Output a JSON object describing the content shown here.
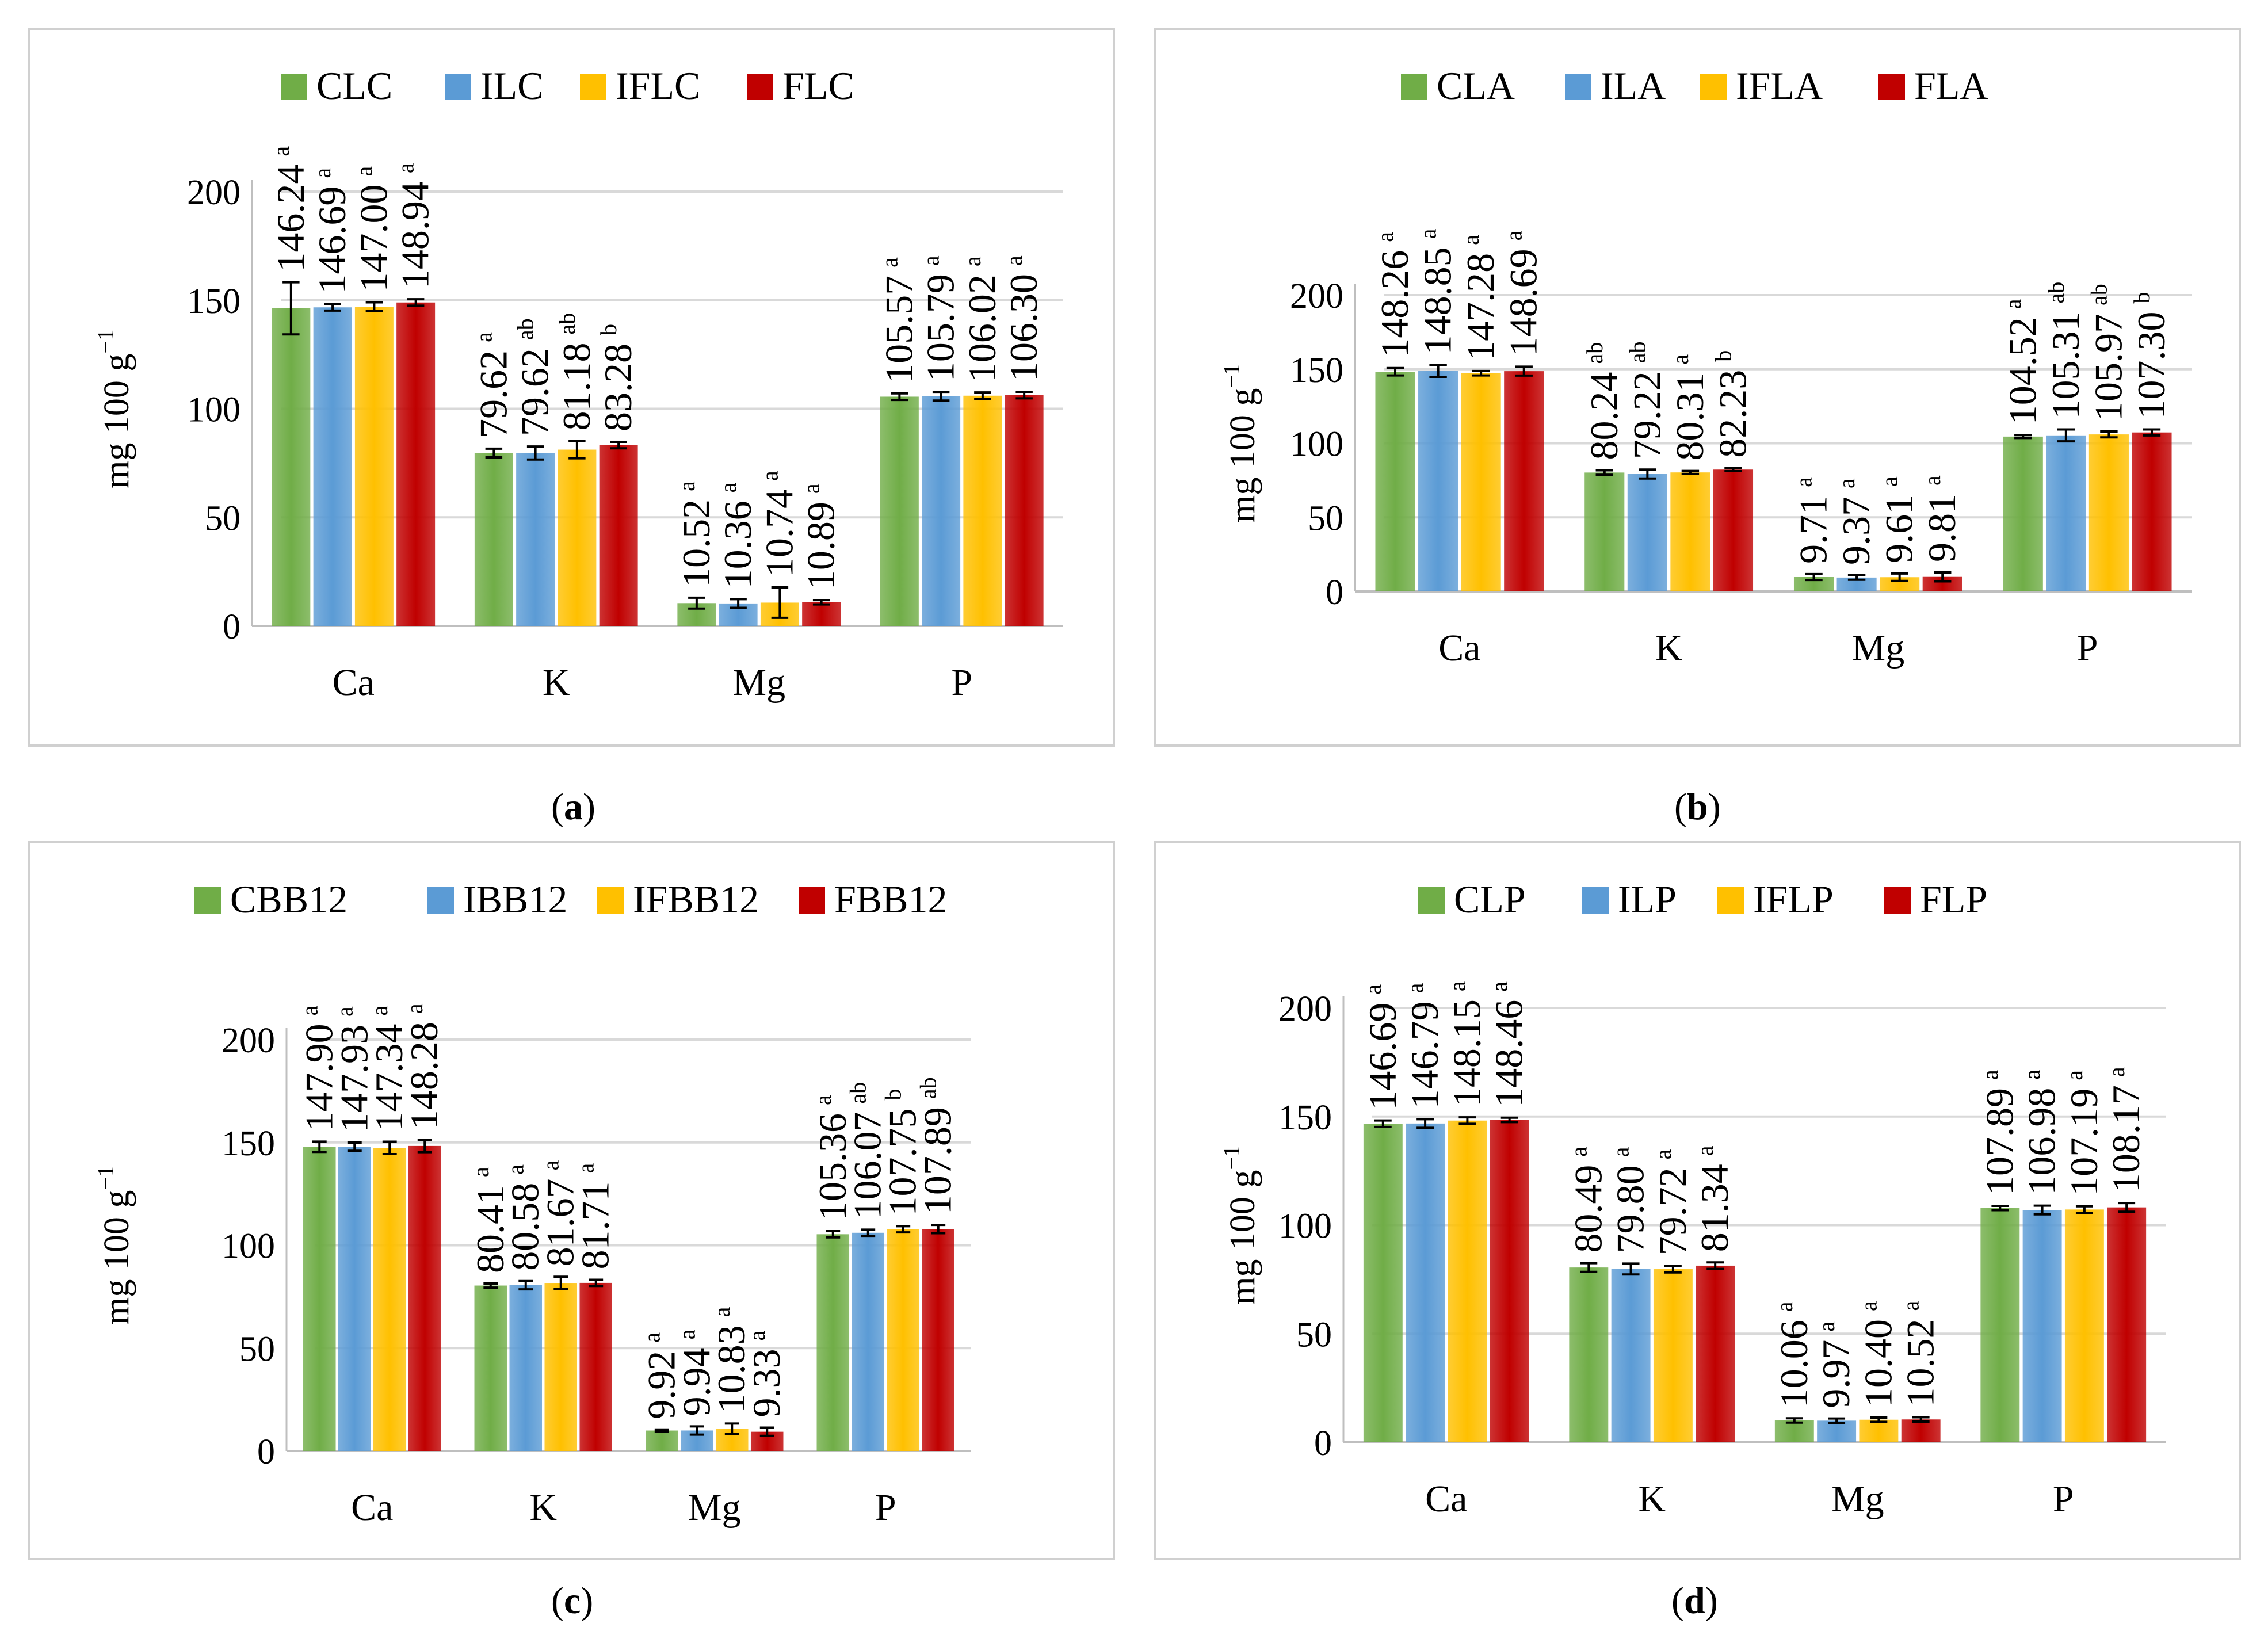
{
  "colors": {
    "green": "#70ad47",
    "blue": "#5b9bd5",
    "yellow": "#ffc000",
    "red": "#c00000",
    "grid": "#d9d9d9",
    "axis": "#bfbfbf",
    "border": "#d0d0d0"
  },
  "chart_data": [
    {
      "type": "bar",
      "panel_label": "a",
      "ylabel": "mg 100 g",
      "ylabel_sup": "−1",
      "ylim": [
        0,
        200
      ],
      "yticks": [
        0,
        50,
        100,
        150,
        200
      ],
      "categories": [
        "Ca",
        "K",
        "Mg",
        "P"
      ],
      "series": [
        {
          "name": "CLC",
          "values": [
            146.24,
            79.62,
            10.52,
            105.57
          ],
          "errors": [
            12.0,
            2.0,
            2.5,
            1.5
          ],
          "labels": [
            "146.24",
            "79.62",
            "10.52",
            "105.57"
          ],
          "letters": [
            "a",
            "a",
            "a",
            "a"
          ]
        },
        {
          "name": "ILC",
          "values": [
            146.69,
            79.62,
            10.36,
            105.79
          ],
          "errors": [
            1.5,
            3.0,
            2.0,
            2.0
          ],
          "labels": [
            "146.69",
            "79.62",
            "10.36",
            "105.79"
          ],
          "letters": [
            "a",
            "ab",
            "a",
            "a"
          ]
        },
        {
          "name": "IFLC",
          "values": [
            147.0,
            81.18,
            10.74,
            106.02
          ],
          "errors": [
            2.0,
            4.0,
            7.0,
            1.5
          ],
          "labels": [
            "147.00",
            "81.18",
            "10.74",
            "106.02"
          ],
          "letters": [
            "a",
            "ab",
            "a",
            "a"
          ]
        },
        {
          "name": "FLC",
          "values": [
            148.94,
            83.28,
            10.89,
            106.3
          ],
          "errors": [
            1.5,
            1.5,
            1.0,
            1.5
          ],
          "labels": [
            "148.94",
            "83.28",
            "10.89",
            "106.30"
          ],
          "letters": [
            "a",
            "b",
            "a",
            "a"
          ]
        }
      ]
    },
    {
      "type": "bar",
      "panel_label": "b",
      "ylabel": "mg 100 g",
      "ylabel_sup": "−1",
      "ylim": [
        0,
        200
      ],
      "yticks": [
        0,
        50,
        100,
        150,
        200
      ],
      "categories": [
        "Ca",
        "K",
        "Mg",
        "P"
      ],
      "series": [
        {
          "name": "CLA",
          "values": [
            148.26,
            80.24,
            9.71,
            104.52
          ],
          "errors": [
            2.5,
            1.5,
            2.0,
            1.0
          ],
          "labels": [
            "148.26",
            "80.24",
            "9.71",
            "104.52"
          ],
          "letters": [
            "a",
            "ab",
            "a",
            "a"
          ]
        },
        {
          "name": "ILA",
          "values": [
            148.85,
            79.22,
            9.37,
            105.31
          ],
          "errors": [
            4.0,
            3.0,
            1.5,
            4.0
          ],
          "labels": [
            "148.85",
            "79.22",
            "9.37",
            "105.31"
          ],
          "letters": [
            "a",
            "ab",
            "a",
            "ab"
          ]
        },
        {
          "name": "IFLA",
          "values": [
            147.28,
            80.31,
            9.61,
            105.97
          ],
          "errors": [
            1.5,
            1.0,
            2.5,
            2.0
          ],
          "labels": [
            "147.28",
            "80.31",
            "9.61",
            "105.97"
          ],
          "letters": [
            "a",
            "a",
            "a",
            "ab"
          ]
        },
        {
          "name": "FLA",
          "values": [
            148.69,
            82.23,
            9.81,
            107.3
          ],
          "errors": [
            3.0,
            1.0,
            3.0,
            2.0
          ],
          "labels": [
            "148.69",
            "82.23",
            "9.81",
            "107.30"
          ],
          "letters": [
            "a",
            "b",
            "a",
            "b"
          ]
        }
      ]
    },
    {
      "type": "bar",
      "panel_label": "c",
      "ylabel": "mg 100 g",
      "ylabel_sup": "−1",
      "ylim": [
        0,
        200
      ],
      "yticks": [
        0,
        50,
        100,
        150,
        200
      ],
      "categories": [
        "Ca",
        "K",
        "Mg",
        "P"
      ],
      "series": [
        {
          "name": "CBB12",
          "values": [
            147.9,
            80.41,
            9.92,
            105.36
          ],
          "errors": [
            2.5,
            1.0,
            0.5,
            1.5
          ],
          "labels": [
            "147.90",
            "80.41",
            "9.92",
            "105.36"
          ],
          "letters": [
            "a",
            "a",
            "a",
            "a"
          ]
        },
        {
          "name": "IBB12",
          "values": [
            147.93,
            80.58,
            9.94,
            106.07
          ],
          "errors": [
            2.0,
            2.0,
            2.0,
            1.5
          ],
          "labels": [
            "147.93",
            "80.58",
            "9.94",
            "106.07"
          ],
          "letters": [
            "a",
            "a",
            "a",
            "ab"
          ]
        },
        {
          "name": "IFBB12",
          "values": [
            147.34,
            81.67,
            10.83,
            107.75
          ],
          "errors": [
            3.0,
            3.0,
            2.5,
            1.5
          ],
          "labels": [
            "147.34",
            "81.67",
            "10.83",
            "107.75"
          ],
          "letters": [
            "a",
            "a",
            "a",
            "b"
          ]
        },
        {
          "name": "FBB12",
          "values": [
            148.28,
            81.71,
            9.33,
            107.89
          ],
          "errors": [
            3.0,
            1.5,
            2.0,
            2.0
          ],
          "labels": [
            "148.28",
            "81.71",
            "9.33",
            "107.89"
          ],
          "letters": [
            "a",
            "a",
            "a",
            "ab"
          ]
        }
      ]
    },
    {
      "type": "bar",
      "panel_label": "d",
      "ylabel": "mg 100 g",
      "ylabel_sup": "−1",
      "ylim": [
        0,
        200
      ],
      "yticks": [
        0,
        50,
        100,
        150,
        200
      ],
      "categories": [
        "Ca",
        "K",
        "Mg",
        "P"
      ],
      "series": [
        {
          "name": "CLP",
          "values": [
            146.69,
            80.49,
            10.06,
            107.89
          ],
          "errors": [
            1.5,
            2.0,
            1.0,
            1.0
          ],
          "labels": [
            "146.69",
            "80.49",
            "10.06",
            "107.89"
          ],
          "letters": [
            "a",
            "a",
            "a",
            "a"
          ]
        },
        {
          "name": "ILP",
          "values": [
            146.79,
            79.8,
            9.97,
            106.98
          ],
          "errors": [
            2.0,
            2.5,
            1.0,
            2.0
          ],
          "labels": [
            "146.79",
            "79.80",
            "9.97",
            "106.98"
          ],
          "letters": [
            "a",
            "a",
            "a",
            "a"
          ]
        },
        {
          "name": "IFLP",
          "values": [
            148.15,
            79.72,
            10.4,
            107.19
          ],
          "errors": [
            1.5,
            1.5,
            1.0,
            1.5
          ],
          "labels": [
            "148.15",
            "79.72",
            "10.40",
            "107.19"
          ],
          "letters": [
            "a",
            "a",
            "a",
            "a"
          ]
        },
        {
          "name": "FLP",
          "values": [
            148.46,
            81.34,
            10.52,
            108.17
          ],
          "errors": [
            1.0,
            1.5,
            1.0,
            2.0
          ],
          "labels": [
            "148.46",
            "81.34",
            "10.52",
            "108.17"
          ],
          "letters": [
            "a",
            "a",
            "a",
            "a"
          ]
        }
      ]
    }
  ]
}
